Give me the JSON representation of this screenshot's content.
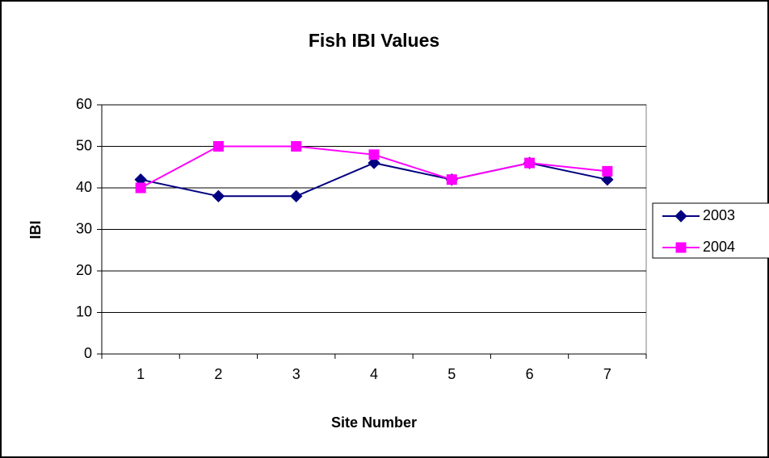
{
  "chart_data": {
    "type": "line",
    "title": "Fish IBI Values",
    "x_label": "Site Number",
    "y_label": "IBI",
    "categories": [
      "1",
      "2",
      "3",
      "4",
      "5",
      "6",
      "7"
    ],
    "series": [
      {
        "name": "2003",
        "color": "#000080",
        "marker": "diamond",
        "values": [
          42,
          38,
          38,
          46,
          42,
          46,
          42
        ]
      },
      {
        "name": "2004",
        "color": "#ff00ff",
        "marker": "square",
        "values": [
          40,
          50,
          50,
          48,
          42,
          46,
          44
        ]
      }
    ],
    "ylim": [
      0,
      60
    ],
    "yticks": [
      0,
      10,
      20,
      30,
      40,
      50,
      60
    ],
    "grid": true,
    "legend": "right"
  }
}
